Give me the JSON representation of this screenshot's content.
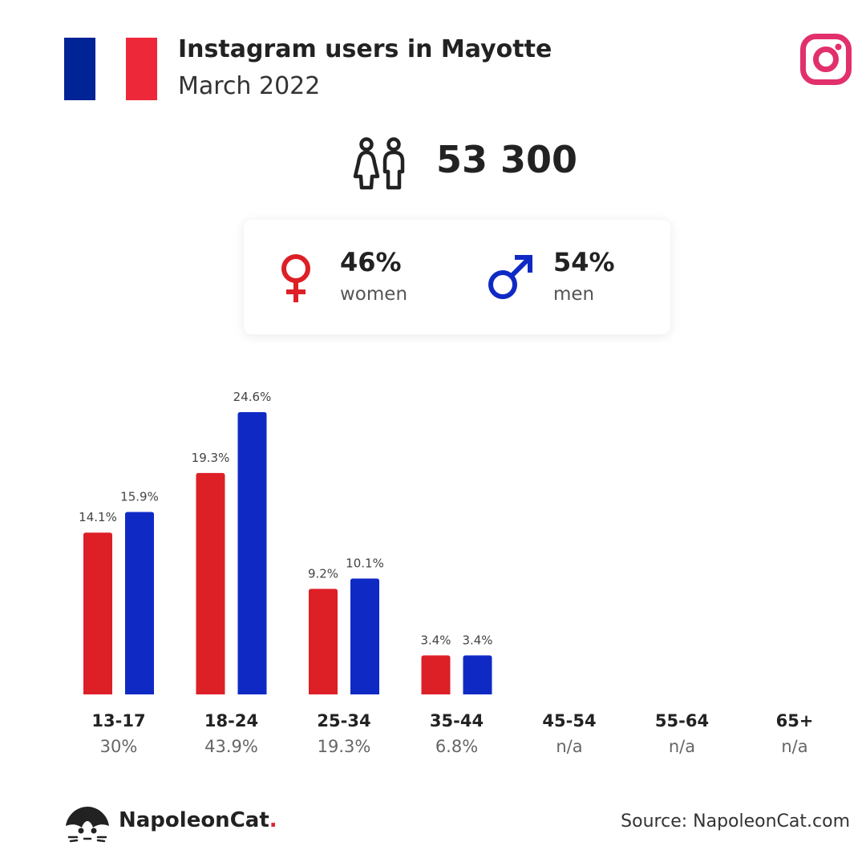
{
  "header": {
    "title": "Instagram users in Mayotte",
    "subtitle": "March 2022"
  },
  "flag": {
    "colors": [
      "#002395",
      "#ffffff",
      "#ed2939"
    ]
  },
  "icons": {
    "brand": "instagram-icon",
    "users": "people-icon",
    "female": "female-symbol-icon",
    "male": "male-symbol-icon"
  },
  "total_users": "53 300",
  "gender": {
    "women": {
      "percent": "46%",
      "label": "women",
      "color": "#dd1f26"
    },
    "men": {
      "percent": "54%",
      "label": "men",
      "color": "#0f2ac4"
    }
  },
  "chart_data": {
    "type": "bar",
    "categories": [
      "13-17",
      "18-24",
      "25-34",
      "35-44",
      "45-54",
      "55-64",
      "65+"
    ],
    "category_totals": [
      "30%",
      "43.9%",
      "19.3%",
      "6.8%",
      "n/a",
      "n/a",
      "n/a"
    ],
    "series": [
      {
        "values": [
          14.1,
          19.3,
          9.2,
          3.4,
          null,
          null,
          null
        ],
        "labels": [
          "14.1%",
          "19.3%",
          "9.2%",
          "3.4%",
          null,
          null,
          null
        ],
        "color": "#dd1f26"
      },
      {
        "values": [
          15.9,
          24.6,
          10.1,
          3.4,
          null,
          null,
          null
        ],
        "labels": [
          "15.9%",
          "24.6%",
          "10.1%",
          "3.4%",
          null,
          null,
          null
        ],
        "color": "#0f2ac4"
      }
    ],
    "ylim": [
      0,
      24.6
    ],
    "grid": false,
    "legend": "none"
  },
  "footer": {
    "brand_name": "NapoleonCat",
    "brand_dot": ".",
    "source": "Source: NapoleonCat.com"
  }
}
